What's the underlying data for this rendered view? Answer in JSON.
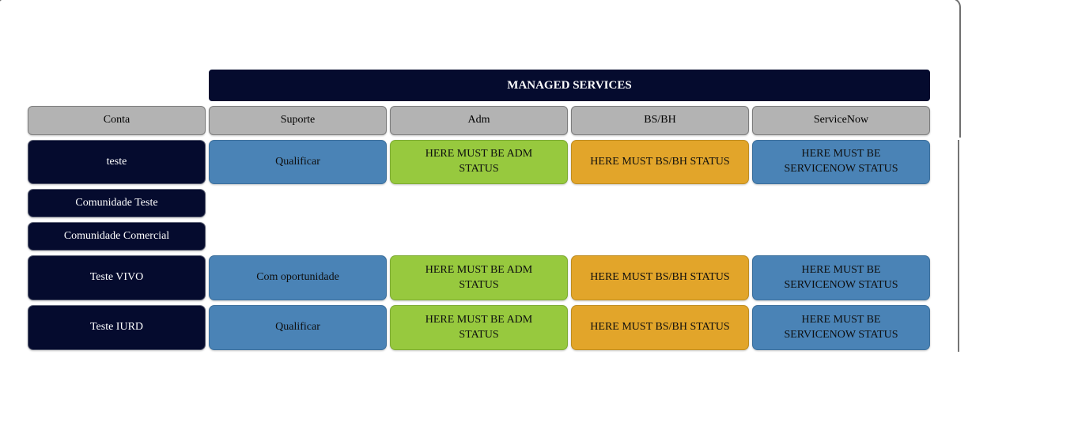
{
  "panel": {
    "border_color": "#6f6f6f"
  },
  "managed_services_header": {
    "label": "MANAGED SERVICES"
  },
  "columns": [
    {
      "label": "Conta"
    },
    {
      "label": "Suporte"
    },
    {
      "label": "Adm"
    },
    {
      "label": "BS/BH"
    },
    {
      "label": "ServiceNow"
    }
  ],
  "rows": [
    {
      "conta": "teste",
      "suporte": "Qualificar",
      "adm": "HERE MUST BE ADM\nSTATUS",
      "bsbh": "HERE MUST BS/BH STATUS",
      "servicenow": "HERE MUST BE\nSERVICENOW STATUS"
    },
    {
      "conta": "Comunidade Teste"
    },
    {
      "conta": "Comunidade Comercial"
    },
    {
      "conta": "Teste VIVO",
      "suporte": "Com oportunidade",
      "adm": "HERE MUST BE ADM\nSTATUS",
      "bsbh": "HERE MUST BS/BH STATUS",
      "servicenow": "HERE MUST BE\nSERVICENOW STATUS"
    },
    {
      "conta": "Teste IURD",
      "suporte": "Qualificar",
      "adm": "HERE MUST BE ADM\nSTATUS",
      "bsbh": "HERE MUST BS/BH STATUS",
      "servicenow": "HERE MUST BE\nSERVICENOW STATUS"
    }
  ],
  "colors": {
    "navy": "#050b2e",
    "blue": "#4a83b6",
    "green": "#97c93e",
    "orange": "#e2a52a",
    "gray_header": "#b3b3b3",
    "header_text": "#ffffff",
    "cell_text": "#0e0e0e"
  }
}
